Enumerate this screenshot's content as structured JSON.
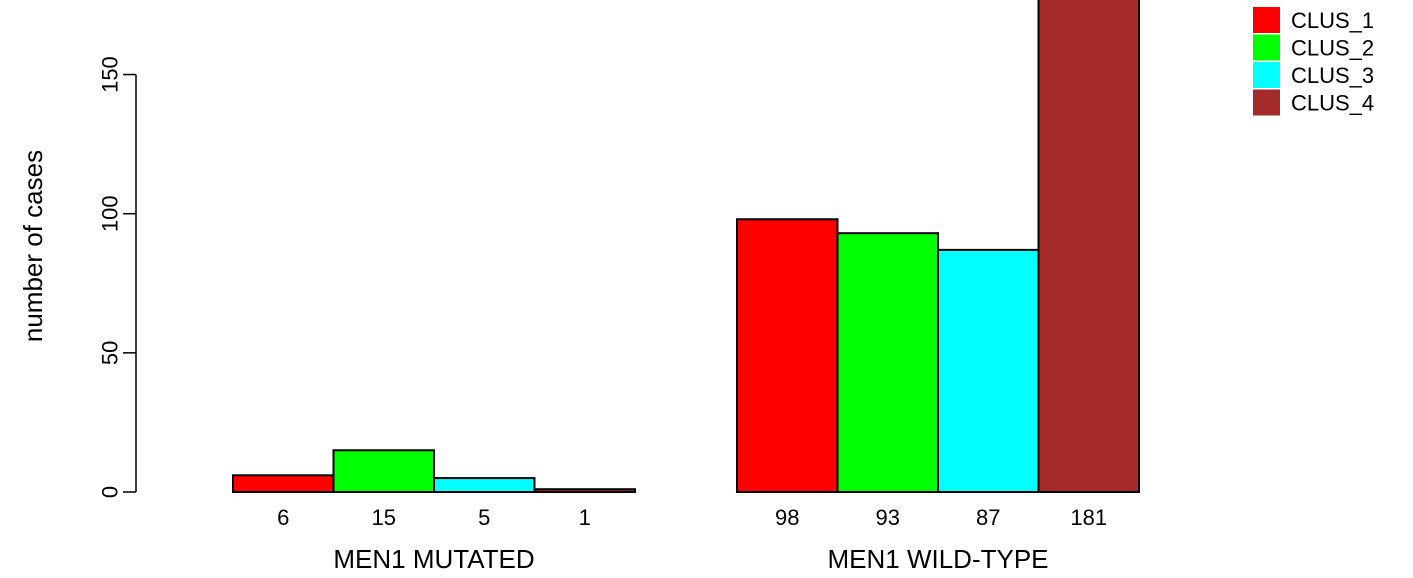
{
  "chart_data": {
    "type": "bar",
    "ylabel": "number of cases",
    "ylim": [
      0,
      181
    ],
    "yticks": [
      0,
      50,
      100,
      150
    ],
    "groups": [
      {
        "label": "MEN1 MUTATED",
        "values": [
          6,
          15,
          5,
          1
        ]
      },
      {
        "label": "MEN1 WILD-TYPE",
        "values": [
          98,
          93,
          87,
          181
        ]
      }
    ],
    "series": [
      {
        "name": "CLUS_1",
        "color": "#ff0000"
      },
      {
        "name": "CLUS_2",
        "color": "#00ff00"
      },
      {
        "name": "CLUS_3",
        "color": "#00ffff"
      },
      {
        "name": "CLUS_4",
        "color": "#a52a2a"
      }
    ],
    "legend_position": "top-right",
    "grid": false
  }
}
